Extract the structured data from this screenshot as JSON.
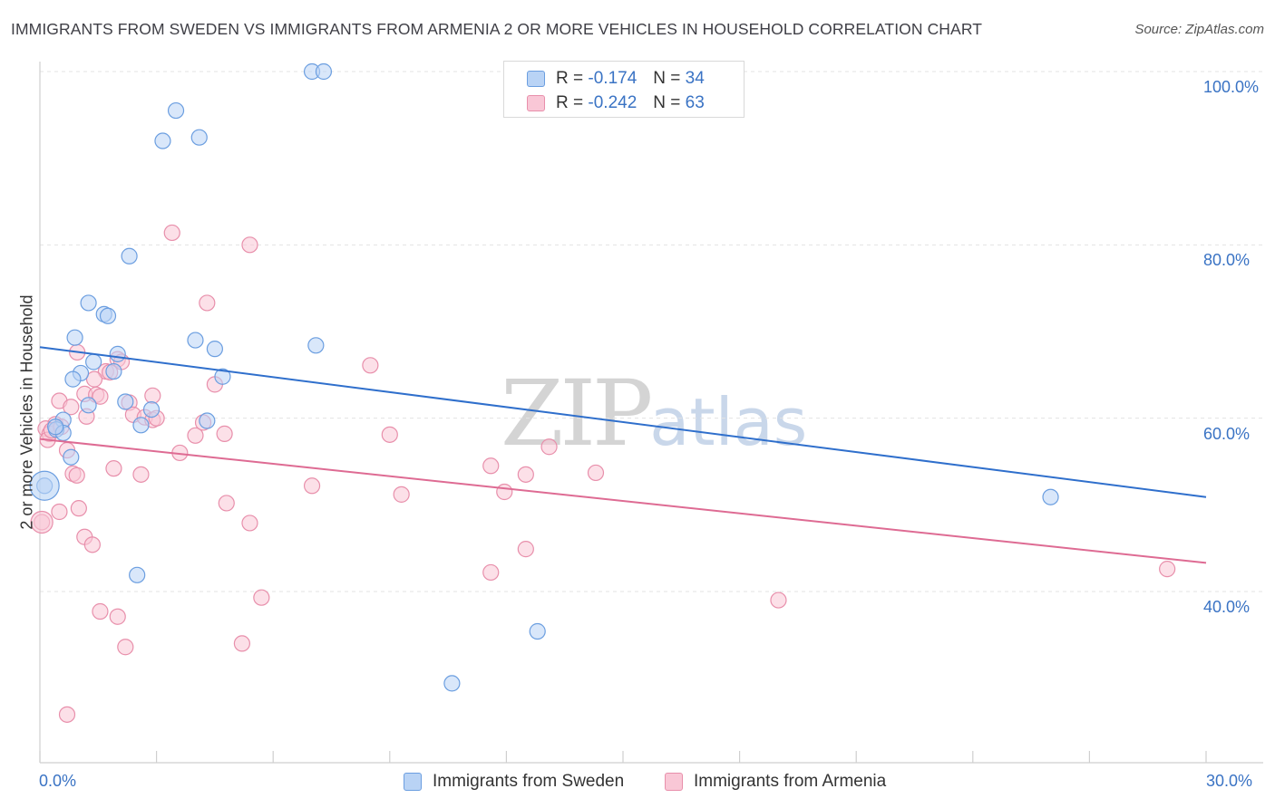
{
  "title": "IMMIGRANTS FROM SWEDEN VS IMMIGRANTS FROM ARMENIA 2 OR MORE VEHICLES IN HOUSEHOLD CORRELATION CHART",
  "source": "Source: ZipAtlas.com",
  "watermark": {
    "zip": "ZIP",
    "atlas": "atlas"
  },
  "legend": {
    "sweden": {
      "r_label": "R =",
      "r_value": "-0.174",
      "n_label": "N =",
      "n_value": "34"
    },
    "armenia": {
      "r_label": "R =",
      "r_value": "-0.242",
      "n_label": "N =",
      "n_value": "63"
    }
  },
  "colors": {
    "sweden_fill": "#b9d3f5",
    "sweden_stroke": "#6b9ee0",
    "sweden_line": "#2f6fcc",
    "armenia_fill": "#f9c7d6",
    "armenia_stroke": "#e88fab",
    "armenia_line": "#de6b93",
    "tick_text": "#3a73c4",
    "grid": "#e3e3e3"
  },
  "chart_data": {
    "type": "scatter",
    "title": "IMMIGRANTS FROM SWEDEN VS IMMIGRANTS FROM ARMENIA 2 OR MORE VEHICLES IN HOUSEHOLD CORRELATION CHART",
    "xlabel": "",
    "ylabel": "2 or more Vehicles in Household",
    "xlim": [
      0,
      30
    ],
    "ylim": [
      22,
      102
    ],
    "x_tick_labels": {
      "min": "0.0%",
      "max": "30.0%"
    },
    "y_ticks": [
      {
        "value": 40,
        "label": "40.0%"
      },
      {
        "value": 60,
        "label": "60.0%"
      },
      {
        "value": 80,
        "label": "80.0%"
      },
      {
        "value": 100,
        "label": "100.0%"
      }
    ],
    "grid": true,
    "legend_position": "top-center",
    "series": [
      {
        "name": "Immigrants from Sweden",
        "key": "sweden",
        "r": -0.174,
        "n": 34,
        "trend": {
          "x0": 0,
          "y0": 68.2,
          "x1": 30,
          "y1": 50.9
        },
        "points": [
          [
            7.0,
            100.0
          ],
          [
            7.3,
            100.0
          ],
          [
            3.5,
            95.5
          ],
          [
            4.1,
            92.4
          ],
          [
            3.16,
            92.0
          ],
          [
            2.3,
            78.7
          ],
          [
            1.25,
            73.3
          ],
          [
            1.65,
            72.0
          ],
          [
            1.75,
            71.8
          ],
          [
            0.9,
            69.3
          ],
          [
            4.0,
            69.0
          ],
          [
            4.5,
            68.0
          ],
          [
            7.1,
            68.4
          ],
          [
            2.0,
            67.4
          ],
          [
            1.38,
            66.5
          ],
          [
            1.05,
            65.2
          ],
          [
            1.9,
            65.4
          ],
          [
            0.85,
            64.5
          ],
          [
            4.7,
            64.8
          ],
          [
            2.2,
            61.9
          ],
          [
            1.25,
            61.5
          ],
          [
            2.87,
            61.0
          ],
          [
            0.6,
            59.8
          ],
          [
            4.3,
            59.7
          ],
          [
            2.6,
            59.2
          ],
          [
            0.42,
            58.7
          ],
          [
            0.6,
            58.3
          ],
          [
            0.8,
            55.5
          ],
          [
            0.12,
            52.2
          ],
          [
            2.5,
            41.9
          ],
          [
            12.8,
            35.4
          ],
          [
            10.6,
            29.4
          ],
          [
            26.0,
            50.9
          ],
          [
            0.4,
            59.0
          ]
        ]
      },
      {
        "name": "Immigrants from Armenia",
        "key": "armenia",
        "r": -0.242,
        "n": 63,
        "trend": {
          "x0": 0,
          "y0": 57.6,
          "x1": 30,
          "y1": 43.3
        },
        "points": [
          [
            3.4,
            81.4
          ],
          [
            5.4,
            80.0
          ],
          [
            4.3,
            73.3
          ],
          [
            0.96,
            67.6
          ],
          [
            2.0,
            66.8
          ],
          [
            1.7,
            65.4
          ],
          [
            1.4,
            64.5
          ],
          [
            4.5,
            63.9
          ],
          [
            8.5,
            66.1
          ],
          [
            1.15,
            62.8
          ],
          [
            1.45,
            62.7
          ],
          [
            1.55,
            62.5
          ],
          [
            2.9,
            62.6
          ],
          [
            0.5,
            62.0
          ],
          [
            2.3,
            61.8
          ],
          [
            0.8,
            61.3
          ],
          [
            1.2,
            60.2
          ],
          [
            2.4,
            60.4
          ],
          [
            2.7,
            60.1
          ],
          [
            2.9,
            59.8
          ],
          [
            0.4,
            59.3
          ],
          [
            0.15,
            58.8
          ],
          [
            0.25,
            58.2
          ],
          [
            4.0,
            58.0
          ],
          [
            4.75,
            58.2
          ],
          [
            9.0,
            58.1
          ],
          [
            0.2,
            57.5
          ],
          [
            0.7,
            56.3
          ],
          [
            3.6,
            56.0
          ],
          [
            13.1,
            56.7
          ],
          [
            1.9,
            54.2
          ],
          [
            0.85,
            53.6
          ],
          [
            0.95,
            53.4
          ],
          [
            2.6,
            53.5
          ],
          [
            11.6,
            54.5
          ],
          [
            12.5,
            53.5
          ],
          [
            14.3,
            53.7
          ],
          [
            7.0,
            52.2
          ],
          [
            9.3,
            51.2
          ],
          [
            11.95,
            51.5
          ],
          [
            4.8,
            50.2
          ],
          [
            1.0,
            49.6
          ],
          [
            0.5,
            49.2
          ],
          [
            0.05,
            48.0
          ],
          [
            5.4,
            47.9
          ],
          [
            1.15,
            46.3
          ],
          [
            1.35,
            45.4
          ],
          [
            12.5,
            44.9
          ],
          [
            11.6,
            42.2
          ],
          [
            29.0,
            42.6
          ],
          [
            5.7,
            39.3
          ],
          [
            19.0,
            39.0
          ],
          [
            1.55,
            37.7
          ],
          [
            2.0,
            37.1
          ],
          [
            2.2,
            33.6
          ],
          [
            5.2,
            34.0
          ],
          [
            0.7,
            25.8
          ],
          [
            1.8,
            65.3
          ],
          [
            0.3,
            58.6
          ],
          [
            3.0,
            60.0
          ],
          [
            0.55,
            59.0
          ],
          [
            2.1,
            66.5
          ],
          [
            4.2,
            59.5
          ]
        ]
      }
    ]
  },
  "bottom_legend": {
    "sweden": "Immigrants from Sweden",
    "armenia": "Immigrants from Armenia"
  }
}
